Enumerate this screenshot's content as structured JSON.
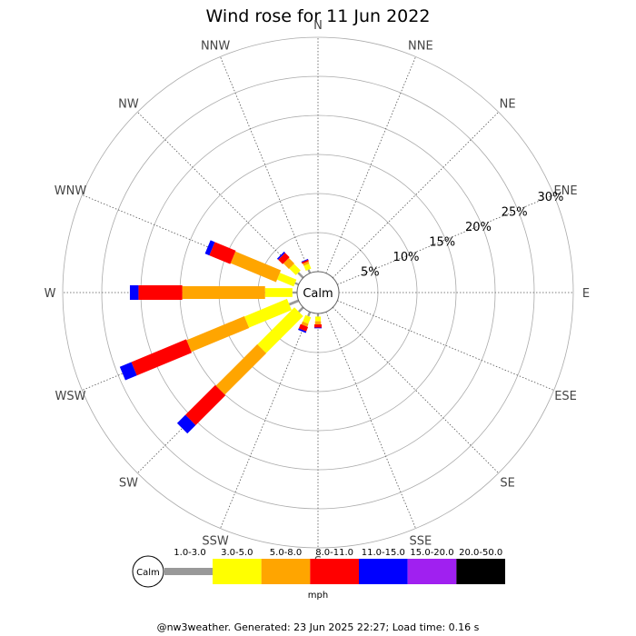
{
  "title": "Wind rose for 11 Jun 2022",
  "calm_label": "Calm",
  "units_label": "mph",
  "footer": "@nw3weather. Generated: 23 Jun 2025 22:27; Load time: 0.16 s",
  "chart_data": {
    "type": "wind-rose",
    "title": "Wind rose for 11 Jun 2022",
    "directions": [
      "N",
      "NNE",
      "NE",
      "ENE",
      "E",
      "ESE",
      "SE",
      "SSE",
      "S",
      "SSW",
      "SW",
      "WSW",
      "W",
      "WNW",
      "NW",
      "NNW"
    ],
    "radial_ticks": [
      "5%",
      "10%",
      "15%",
      "20%",
      "25%",
      "30%"
    ],
    "radial_max": 30,
    "speed_bins": [
      {
        "label": "1.0-3.0",
        "color": "#999999"
      },
      {
        "label": "3.0-5.0",
        "color": "#ffff00"
      },
      {
        "label": "5.0-8.0",
        "color": "#ffa500"
      },
      {
        "label": "8.0-11.0",
        "color": "#ff0000"
      },
      {
        "label": "11.0-15.0",
        "color": "#0000ff"
      },
      {
        "label": "15.0-20.0",
        "color": "#a020f0"
      },
      {
        "label": "20.0-50.0",
        "color": "#000000"
      }
    ],
    "units": "mph",
    "series": [
      {
        "direction": "NNW",
        "values": [
          0.5,
          0.7,
          0.3,
          0.2,
          0.1,
          0,
          0
        ]
      },
      {
        "direction": "NW",
        "values": [
          0.9,
          1.2,
          1.0,
          0.8,
          0.2,
          0,
          0
        ]
      },
      {
        "direction": "WNW",
        "values": [
          0.5,
          2.3,
          6.3,
          2.9,
          0.6,
          0,
          0
        ]
      },
      {
        "direction": "W",
        "values": [
          0.6,
          3.5,
          10.6,
          5.6,
          1.1,
          0,
          0
        ]
      },
      {
        "direction": "WSW",
        "values": [
          1.3,
          5.9,
          8.0,
          7.6,
          1.6,
          0,
          0
        ]
      },
      {
        "direction": "SW",
        "values": [
          0.8,
          6.7,
          7.5,
          5.4,
          1.5,
          0,
          0
        ]
      },
      {
        "direction": "SSW",
        "values": [
          0.6,
          0.9,
          0.4,
          0.6,
          0.2,
          0,
          0
        ]
      },
      {
        "direction": "S",
        "values": [
          0.4,
          0.6,
          0.4,
          0.4,
          0.1,
          0,
          0
        ]
      }
    ]
  }
}
